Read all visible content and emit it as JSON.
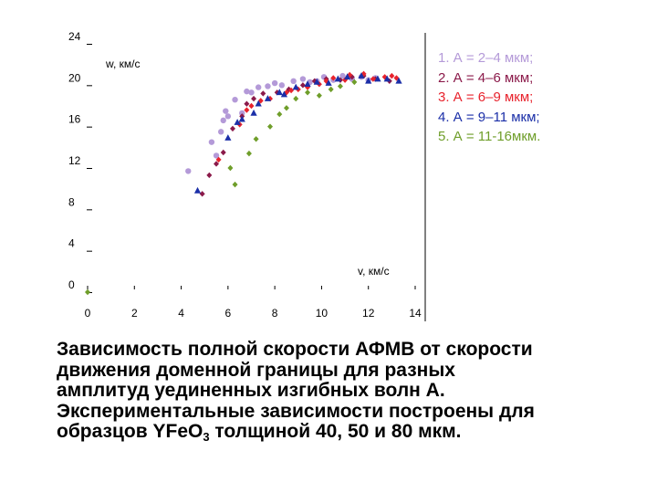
{
  "chart_data": {
    "type": "scatter",
    "xlabel": "v, км/с",
    "ylabel": "w, км/с",
    "xlim": [
      0,
      14
    ],
    "ylim": [
      0,
      24
    ],
    "x_ticks": [
      "0",
      "2",
      "4",
      "6",
      "8",
      "10",
      "12",
      "14"
    ],
    "y_ticks": [
      "0",
      "4",
      "8",
      "12",
      "16",
      "20",
      "24"
    ],
    "grid": false,
    "legend_position": "top-right",
    "series": [
      {
        "name": "1. А = 2–4 мкм;",
        "color": "#b49ad8",
        "marker": "circle",
        "points": [
          [
            4.3,
            11.7
          ],
          [
            5.3,
            14.5
          ],
          [
            5.5,
            13.2
          ],
          [
            5.7,
            15.5
          ],
          [
            5.8,
            16.6
          ],
          [
            5.9,
            17.5
          ],
          [
            6.0,
            17.0
          ],
          [
            6.3,
            18.6
          ],
          [
            6.6,
            17.3
          ],
          [
            6.8,
            19.4
          ],
          [
            7.0,
            19.3
          ],
          [
            7.3,
            19.8
          ],
          [
            7.7,
            19.9
          ],
          [
            8.0,
            20.2
          ],
          [
            8.3,
            20.0
          ],
          [
            8.8,
            20.4
          ],
          [
            9.2,
            20.6
          ],
          [
            9.5,
            20.3
          ],
          [
            9.8,
            20.4
          ],
          [
            10.1,
            20.8
          ],
          [
            10.5,
            20.5
          ],
          [
            10.9,
            20.9
          ],
          [
            11.3,
            20.6
          ],
          [
            11.7,
            20.8
          ],
          [
            12.0,
            20.5
          ],
          [
            12.3,
            20.7
          ]
        ]
      },
      {
        "name": "2. А = 4–6 мкм;",
        "color": "#8b1a4a",
        "marker": "diamond",
        "points": [
          [
            4.9,
            9.5
          ],
          [
            5.2,
            11.3
          ],
          [
            5.5,
            12.4
          ],
          [
            5.8,
            13.5
          ],
          [
            6.2,
            15.8
          ],
          [
            6.6,
            17.0
          ],
          [
            6.8,
            18.2
          ],
          [
            7.1,
            18.7
          ],
          [
            7.5,
            19.2
          ],
          [
            8.1,
            19.3
          ],
          [
            8.6,
            19.6
          ],
          [
            9.2,
            20.0
          ],
          [
            9.7,
            20.4
          ],
          [
            10.2,
            20.6
          ],
          [
            10.8,
            20.5
          ],
          [
            11.3,
            20.8
          ],
          [
            11.8,
            20.9
          ],
          [
            12.3,
            20.6
          ],
          [
            12.9,
            20.4
          ]
        ]
      },
      {
        "name": "3. А = 6–9 мкм;",
        "color": "#e8232d",
        "marker": "diamond",
        "points": [
          [
            5.6,
            12.8
          ],
          [
            6.5,
            16.2
          ],
          [
            6.8,
            17.6
          ],
          [
            7.0,
            18.0
          ],
          [
            7.4,
            18.5
          ],
          [
            7.8,
            18.7
          ],
          [
            8.5,
            19.3
          ],
          [
            8.7,
            19.5
          ],
          [
            9.0,
            19.6
          ],
          [
            9.4,
            19.8
          ],
          [
            9.9,
            20.1
          ],
          [
            10.2,
            20.4
          ],
          [
            10.5,
            20.7
          ],
          [
            11.0,
            20.5
          ],
          [
            11.2,
            21.0
          ],
          [
            11.8,
            21.1
          ],
          [
            12.2,
            20.6
          ],
          [
            12.7,
            20.8
          ],
          [
            13.0,
            20.9
          ],
          [
            13.2,
            20.7
          ]
        ]
      },
      {
        "name": "4. А = 9–11 мкм;",
        "color": "#1b2fa8",
        "marker": "triangle",
        "points": [
          [
            4.7,
            9.8
          ],
          [
            6.0,
            14.9
          ],
          [
            6.4,
            16.4
          ],
          [
            6.6,
            16.7
          ],
          [
            7.1,
            17.3
          ],
          [
            7.3,
            18.2
          ],
          [
            7.7,
            18.7
          ],
          [
            8.2,
            19.3
          ],
          [
            8.4,
            19.1
          ],
          [
            8.9,
            19.8
          ],
          [
            9.4,
            20.1
          ],
          [
            9.8,
            20.3
          ],
          [
            10.3,
            20.2
          ],
          [
            10.7,
            20.6
          ],
          [
            11.1,
            20.8
          ],
          [
            11.7,
            20.9
          ],
          [
            12.0,
            20.4
          ],
          [
            12.4,
            20.6
          ],
          [
            12.8,
            20.6
          ],
          [
            13.3,
            20.4
          ]
        ]
      },
      {
        "name": "5. А = 11-16мкм.",
        "color": "#6f9e2a",
        "marker": "diamond",
        "points": [
          [
            0.0,
            0.0
          ],
          [
            6.1,
            12.0
          ],
          [
            6.3,
            10.4
          ],
          [
            6.9,
            13.4
          ],
          [
            7.2,
            14.8
          ],
          [
            7.8,
            16.0
          ],
          [
            8.2,
            17.2
          ],
          [
            8.5,
            17.8
          ],
          [
            8.9,
            18.7
          ],
          [
            9.4,
            19.3
          ],
          [
            9.9,
            19.0
          ],
          [
            10.4,
            19.6
          ],
          [
            10.8,
            19.9
          ],
          [
            11.4,
            20.3
          ]
        ]
      }
    ]
  },
  "caption": {
    "text_before_sub": "Зависимость полной скорости АФМВ от скорости движения доменной границы для разных амплитуд уединенных изгибных волн А. Экспериментальные зависимости построены для  образцов YFeO",
    "sub": "3",
    "text_after_sub": " толщиной 40, 50 и 80 мкм."
  }
}
